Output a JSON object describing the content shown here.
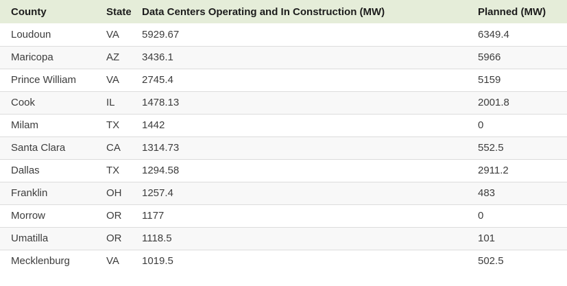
{
  "chart_data": {
    "type": "table",
    "columns": [
      "County",
      "State",
      "Data Centers Operating and In Construction (MW)",
      "Planned (MW)"
    ],
    "rows": [
      [
        "Loudoun",
        "VA",
        "5929.67",
        "6349.4"
      ],
      [
        "Maricopa",
        "AZ",
        "3436.1",
        "5966"
      ],
      [
        "Prince William",
        "VA",
        "2745.4",
        "5159"
      ],
      [
        "Cook",
        "IL",
        "1478.13",
        "2001.8"
      ],
      [
        "Milam",
        "TX",
        "1442",
        "0"
      ],
      [
        "Santa Clara",
        "CA",
        "1314.73",
        "552.5"
      ],
      [
        "Dallas",
        "TX",
        "1294.58",
        "2911.2"
      ],
      [
        "Franklin",
        "OH",
        "1257.4",
        "483"
      ],
      [
        "Morrow",
        "OR",
        "1177",
        "0"
      ],
      [
        "Umatilla",
        "OR",
        "1118.5",
        "101"
      ],
      [
        "Mecklenburg",
        "VA",
        "1019.5",
        "502.5"
      ]
    ],
    "units": "MW",
    "layout_hints": {
      "striped": true,
      "stripe_pattern": "even-rows-gray",
      "alignment": "left"
    },
    "colors": {
      "header_bg": "#e5edd9",
      "stripe_bg": "#f8f8f8",
      "row_bg": "#ffffff",
      "border": "#dcdcdc",
      "header_text": "#1c1c1c",
      "cell_text": "#3c3c3c"
    }
  }
}
